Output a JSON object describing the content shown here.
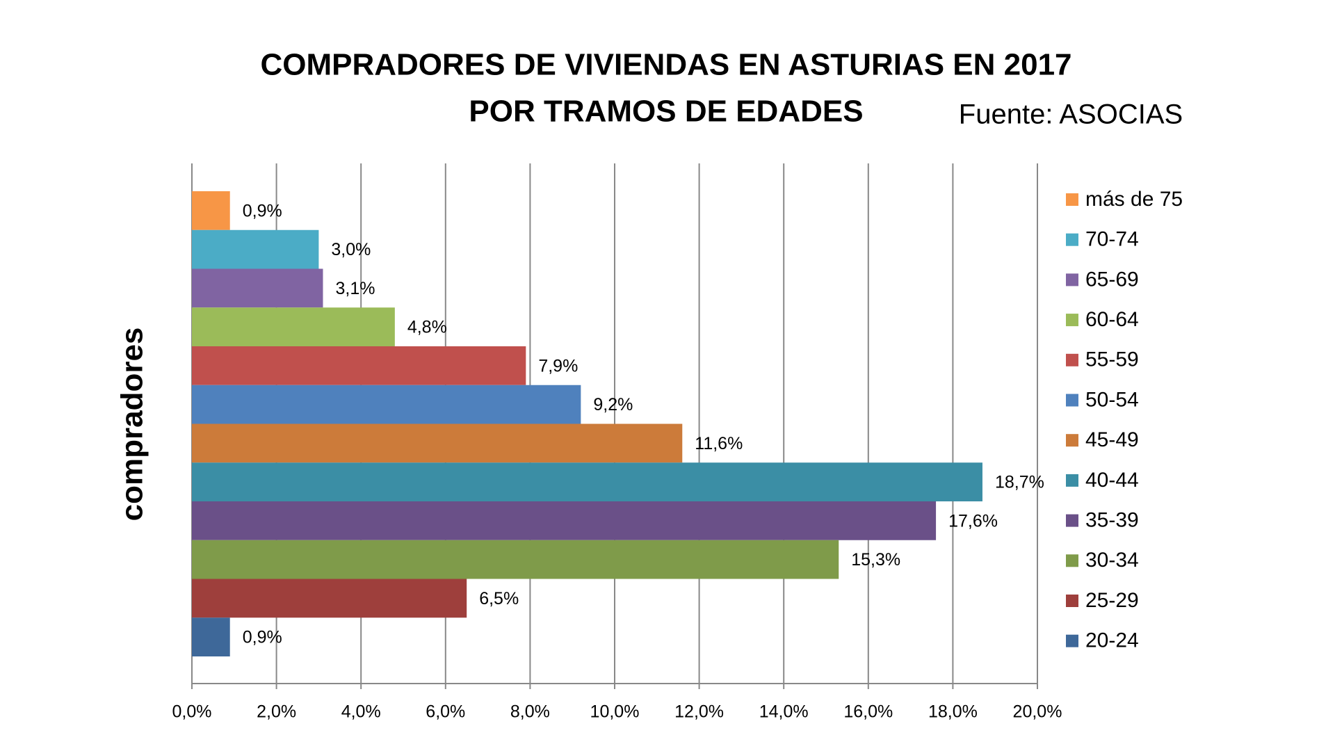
{
  "chart_data": {
    "type": "bar",
    "orientation": "horizontal",
    "title": "COMPRADORES DE VIVIENDAS EN ASTURIAS EN 2017",
    "subtitle": "POR TRAMOS DE EDADES",
    "source": "Fuente: ASOCIAS",
    "categories": [
      "compradores"
    ],
    "series": [
      {
        "name": "más de 75",
        "color": "#f79646",
        "values": [
          0.9
        ],
        "value_labels": [
          "0,9%"
        ]
      },
      {
        "name": "70-74",
        "color": "#4bacc6",
        "values": [
          3.0
        ],
        "value_labels": [
          "3,0%"
        ]
      },
      {
        "name": "65-69",
        "color": "#8064a2",
        "values": [
          3.1
        ],
        "value_labels": [
          "3,1%"
        ]
      },
      {
        "name": "60-64",
        "color": "#9bbb59",
        "values": [
          4.8
        ],
        "value_labels": [
          "4,8%"
        ]
      },
      {
        "name": "55-59",
        "color": "#c0504d",
        "values": [
          7.9
        ],
        "value_labels": [
          "7,9%"
        ]
      },
      {
        "name": "50-54",
        "color": "#4f81bd",
        "values": [
          9.2
        ],
        "value_labels": [
          "9,2%"
        ]
      },
      {
        "name": "45-49",
        "color": "#cc7b3a",
        "values": [
          11.6
        ],
        "value_labels": [
          "11,6%"
        ]
      },
      {
        "name": "40-44",
        "color": "#3b8ea5",
        "values": [
          18.7
        ],
        "value_labels": [
          "18,7%"
        ]
      },
      {
        "name": "35-39",
        "color": "#6a5088",
        "values": [
          17.6
        ],
        "value_labels": [
          "17,6%"
        ]
      },
      {
        "name": "30-34",
        "color": "#7f9b4a",
        "values": [
          15.3
        ],
        "value_labels": [
          "15,3%"
        ]
      },
      {
        "name": "25-29",
        "color": "#9e3f3c",
        "values": [
          6.5
        ],
        "value_labels": [
          "6,5%"
        ]
      },
      {
        "name": "20-24",
        "color": "#3e6899",
        "values": [
          0.9
        ],
        "value_labels": [
          "0,9%"
        ]
      }
    ],
    "xlim": [
      0,
      20
    ],
    "xticks": [
      {
        "value": 0,
        "label": "0,0%"
      },
      {
        "value": 2,
        "label": "2,0%"
      },
      {
        "value": 4,
        "label": "4,0%"
      },
      {
        "value": 6,
        "label": "6,0%"
      },
      {
        "value": 8,
        "label": "8,0%"
      },
      {
        "value": 10,
        "label": "10,0%"
      },
      {
        "value": 12,
        "label": "12,0%"
      },
      {
        "value": 14,
        "label": "14,0%"
      },
      {
        "value": 16,
        "label": "16,0%"
      },
      {
        "value": 18,
        "label": "18,0%"
      },
      {
        "value": 20,
        "label": "20,0%"
      }
    ],
    "grid": true,
    "legend": "right"
  }
}
